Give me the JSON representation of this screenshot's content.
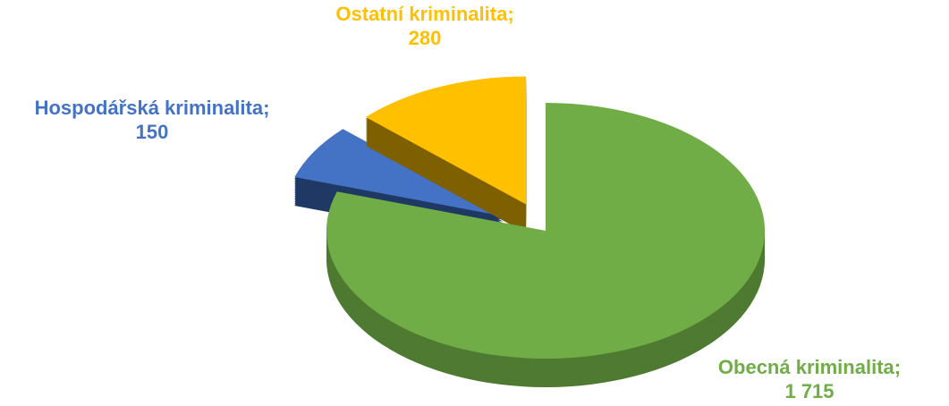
{
  "chart_data": {
    "type": "pie",
    "categories": [
      "Obecná kriminalita",
      "Hospodářská kriminalita",
      "Ostatní kriminalita"
    ],
    "separator": ";",
    "values": [
      1715,
      150,
      280
    ],
    "value_labels": [
      "1 715",
      "150",
      "280"
    ],
    "colors": [
      "#70ad47",
      "#4472c4",
      "#ffc000"
    ],
    "side_colors": [
      "#4e7a31",
      "#1f3864",
      "#7f6000"
    ]
  }
}
